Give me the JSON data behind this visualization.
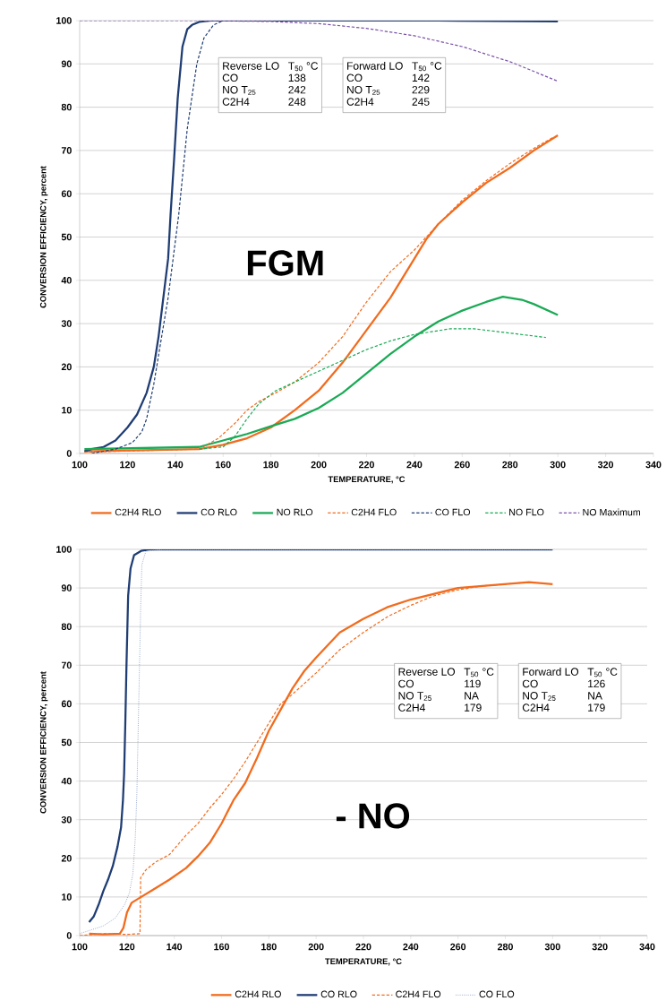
{
  "chart_data": [
    {
      "type": "line",
      "xlabel": "TEMPERATURE, °C",
      "ylabel": "CONVERSION EFFICIENCY, percent",
      "xlim": [
        100,
        340
      ],
      "xticks": [
        100,
        120,
        140,
        160,
        180,
        200,
        220,
        240,
        260,
        280,
        300,
        320,
        340
      ],
      "ylim": [
        0,
        100
      ],
      "yticks": [
        0,
        10,
        20,
        30,
        40,
        50,
        60,
        70,
        80,
        90,
        100
      ],
      "grid": "y",
      "legend": "bottom",
      "annotations": [
        "Reverse LO",
        "T$_{50}$ °C",
        "CO",
        "138",
        "NO T$_{25}$",
        "242",
        "C2H4",
        "248",
        "Forward LO",
        "T$_{50}$ °C",
        "CO",
        "142",
        "NO T$_{25}$",
        "229",
        "C2H4",
        "245",
        "FGM"
      ],
      "series": [
        {
          "name": "C2H4 RLO",
          "color": "#f26b1d",
          "line_style": "solid",
          "x": [
            102,
            150,
            160,
            170,
            180,
            190,
            200,
            210,
            220,
            230,
            240,
            245,
            250,
            260,
            270,
            280,
            290,
            300
          ],
          "values": [
            0.5,
            1,
            2,
            3.5,
            6,
            10,
            14.5,
            21,
            28.5,
            36,
            45,
            49.5,
            53,
            58,
            62.5,
            66,
            70,
            73.5
          ]
        },
        {
          "name": "CO RLO",
          "color": "#1f3d73",
          "line_style": "solid",
          "x": [
            102,
            105,
            110,
            115,
            120,
            124,
            128,
            131,
            133,
            135,
            137,
            138,
            139.5,
            141,
            143,
            145,
            147,
            150,
            155,
            200,
            250,
            300
          ],
          "values": [
            0.5,
            1,
            1.5,
            3,
            6,
            9,
            14,
            20,
            27,
            36,
            45,
            55,
            68,
            82,
            94,
            98,
            99,
            99.7,
            100,
            100,
            100,
            99.8
          ]
        },
        {
          "name": "NO RLO",
          "color": "#1aaa55",
          "line_style": "solid",
          "x": [
            102,
            150,
            160,
            170,
            180,
            190,
            200,
            210,
            220,
            230,
            240,
            250,
            260,
            270,
            277,
            285,
            290,
            300
          ],
          "values": [
            1,
            1.5,
            3,
            4.5,
            6.3,
            8,
            10.5,
            14,
            18.5,
            23,
            27,
            30.5,
            33,
            35,
            36.2,
            35.5,
            34.5,
            32
          ]
        },
        {
          "name": "C2H4 FLO",
          "color": "#f26b1d",
          "line_style": "dashed",
          "x": [
            102,
            150,
            158,
            165,
            170,
            175,
            182,
            190,
            200,
            210,
            220,
            230,
            240,
            250,
            260,
            270,
            280,
            290,
            298
          ],
          "values": [
            0.3,
            1,
            3.5,
            7,
            10,
            12,
            14,
            16.5,
            21,
            27,
            35,
            42,
            47,
            53,
            58.5,
            63,
            67,
            70.5,
            73
          ]
        },
        {
          "name": "CO FLO",
          "color": "#1f3d73",
          "line_style": "dashed",
          "x": [
            105,
            115,
            122,
            126,
            128,
            131,
            134,
            137,
            141.4,
            145,
            149,
            152,
            156,
            160,
            200,
            250,
            300
          ],
          "values": [
            0,
            1,
            2.5,
            5,
            8,
            16,
            26,
            36,
            55,
            75,
            90,
            96,
            99,
            100,
            100,
            100,
            100
          ]
        },
        {
          "name": "NO FLO",
          "color": "#1aaa55",
          "line_style": "dashed",
          "x": [
            150,
            160,
            165,
            170,
            175,
            182,
            190,
            200,
            210,
            220,
            230,
            240,
            255,
            265,
            280,
            295
          ],
          "values": [
            1,
            1.5,
            4,
            8,
            11.5,
            14.5,
            16.5,
            19,
            21.5,
            24,
            26,
            27.5,
            28.8,
            28.8,
            27.8,
            26.8
          ]
        },
        {
          "name": "NO Maximum",
          "color": "#7b52a8",
          "line_style": "dashed",
          "x": [
            100,
            150,
            180,
            200,
            220,
            240,
            260,
            280,
            300
          ],
          "values": [
            100,
            100,
            99.8,
            99.3,
            98.2,
            96.5,
            94,
            90.5,
            86
          ]
        }
      ]
    },
    {
      "type": "line",
      "xlabel": "TEMPERATURE, °C",
      "ylabel": "CONVERSION EFFICIENCY, percent",
      "xlim": [
        100,
        340
      ],
      "xticks": [
        100,
        120,
        140,
        160,
        180,
        200,
        220,
        240,
        260,
        280,
        300,
        320,
        340
      ],
      "ylim": [
        0,
        100
      ],
      "yticks": [
        0,
        10,
        20,
        30,
        40,
        50,
        60,
        70,
        80,
        90,
        100
      ],
      "grid": "y",
      "legend": "bottom",
      "annotations": [
        "Reverse LO",
        "T$_{50}$ °C",
        "CO",
        "119",
        "NO T$_{25}$",
        "NA",
        "C2H4",
        "179",
        "Forward LO",
        "T$_{50}$ °C",
        "CO",
        "126",
        "NO T$_{25}$",
        "NA",
        "C2H4",
        "179",
        "- NO"
      ],
      "series": [
        {
          "name": "C2H4 RLO",
          "color": "#f26b1d",
          "line_style": "solid",
          "x": [
            104,
            110,
            117,
            118.5,
            120,
            122,
            126,
            130,
            138,
            145,
            150,
            155,
            160,
            165,
            170,
            175,
            180,
            185,
            190,
            195,
            200,
            210,
            220,
            230,
            240,
            250,
            260,
            270,
            280,
            290,
            300
          ],
          "values": [
            0.5,
            0.3,
            0.5,
            2,
            6,
            8.5,
            10,
            11.5,
            14.5,
            17.5,
            20.5,
            24,
            29,
            35,
            39.5,
            46,
            53,
            58.5,
            64,
            68.5,
            72,
            78.5,
            82,
            85,
            87,
            88.5,
            90,
            90.5,
            91,
            91.5,
            91
          ]
        },
        {
          "name": "CO RLO",
          "color": "#1f3d73",
          "line_style": "solid",
          "x": [
            104,
            106,
            108,
            110,
            112,
            114,
            116,
            117.5,
            118.3,
            118.8,
            119.3,
            119.8,
            120.5,
            121.5,
            123,
            126,
            130,
            200,
            300
          ],
          "values": [
            3.5,
            5,
            8,
            11.5,
            14.5,
            18,
            23,
            28,
            35,
            42,
            55,
            70,
            88,
            95,
            98.5,
            99.6,
            100,
            100,
            100
          ]
        },
        {
          "name": "C2H4 FLO",
          "color": "#f26b1d",
          "line_style": "dashed",
          "x": [
            100,
            110,
            120,
            125.5,
            125.8,
            128,
            132,
            138,
            145,
            150,
            155,
            160,
            165,
            170,
            175,
            180,
            185,
            190,
            200,
            210,
            220,
            230,
            240,
            250,
            260,
            270,
            280,
            290
          ],
          "values": [
            0,
            0.5,
            0.3,
            0.5,
            15,
            17,
            19,
            21,
            26,
            29,
            33,
            36.5,
            40.5,
            45,
            50,
            55,
            60,
            62.5,
            68,
            74,
            78.5,
            82.5,
            85.5,
            88,
            89.5,
            90.5,
            91,
            91.5
          ]
        },
        {
          "name": "CO FLO",
          "color": "#8ea3c8",
          "line_style": "dotted",
          "x": [
            100,
            105,
            110,
            115,
            119,
            121,
            122.5,
            123.5,
            124.2,
            124.8,
            125.3,
            125.8,
            126.3,
            128,
            135,
            300
          ],
          "values": [
            0.5,
            1.5,
            2.5,
            4.5,
            8,
            11,
            16,
            25,
            37,
            55,
            70,
            85,
            96,
            99.5,
            100,
            100
          ]
        }
      ]
    }
  ]
}
